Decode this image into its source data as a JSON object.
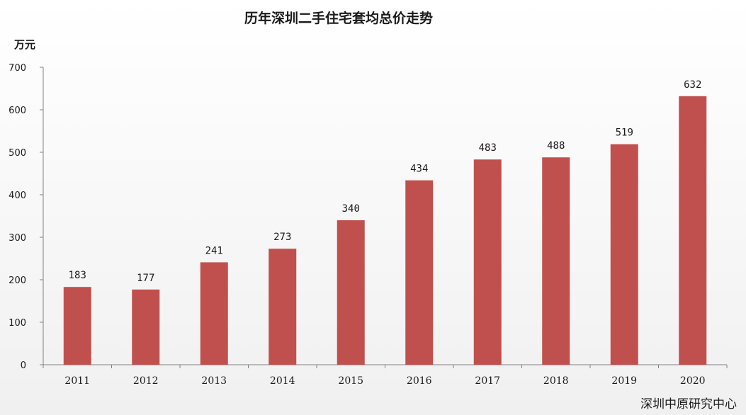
{
  "chart_data": {
    "type": "bar",
    "title": "历年深圳二手住宅套均总价走势",
    "ylabel": "万元",
    "xlabel": "",
    "categories": [
      "2011",
      "2012",
      "2013",
      "2014",
      "2015",
      "2016",
      "2017",
      "2018",
      "2019",
      "2020"
    ],
    "values": [
      183,
      177,
      241,
      273,
      340,
      434,
      483,
      488,
      519,
      632
    ],
    "ylim": [
      0,
      700
    ],
    "yticks": [
      0,
      100,
      200,
      300,
      400,
      500,
      600,
      700
    ],
    "bar_color": "#C0504D",
    "grid": false,
    "legend": "none",
    "source": "深圳中原研究中心"
  }
}
